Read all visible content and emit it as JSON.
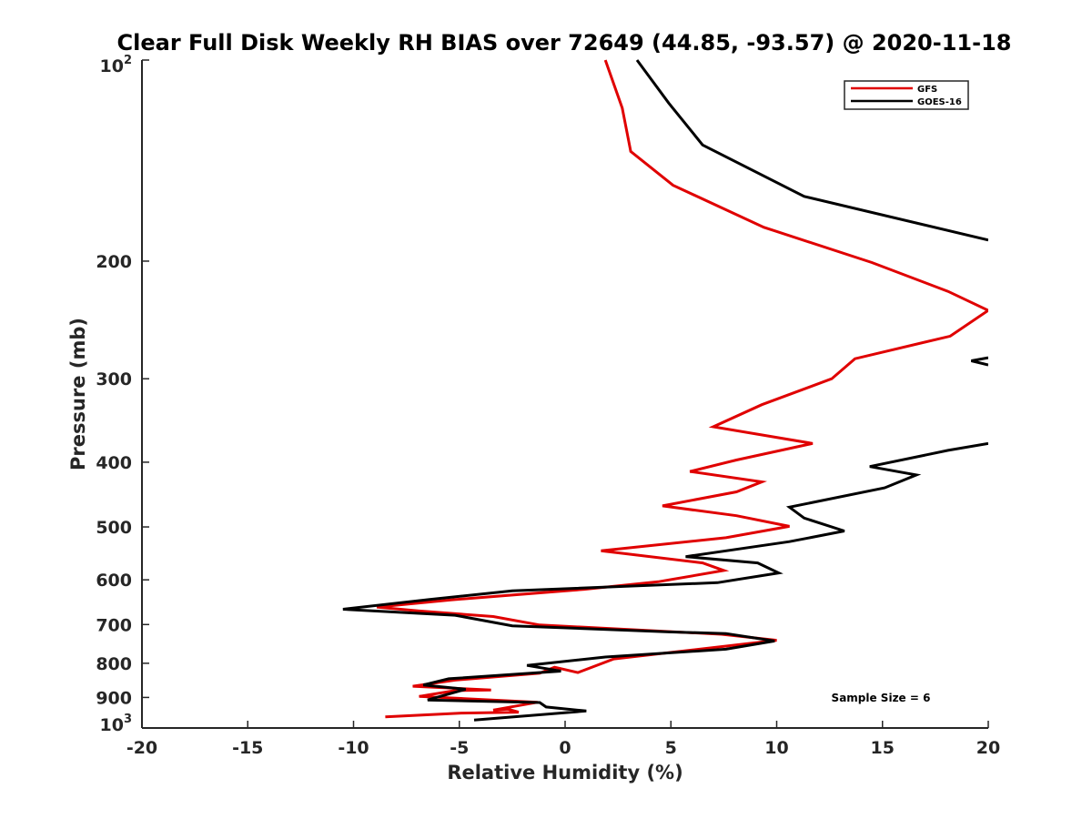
{
  "chart_data": {
    "type": "line",
    "title": "Clear Full Disk Weekly RH BIAS over 72649 (44.85, -93.57) @ 2020-11-18",
    "xlabel": "Relative Humidity (%)",
    "ylabel": "Pressure (mb)",
    "xlim": [
      -20,
      20
    ],
    "ylim": [
      100,
      1000
    ],
    "y_scale": "log",
    "y_reversed": true,
    "x_ticks": [
      "-20",
      "-15",
      "-10",
      "-5",
      "0",
      "5",
      "10",
      "15",
      "20"
    ],
    "y_ticks": [
      {
        "value": 100,
        "base": "10",
        "exp": "2"
      },
      {
        "value": 200,
        "base": "200",
        "exp": ""
      },
      {
        "value": 300,
        "base": "300",
        "exp": ""
      },
      {
        "value": 400,
        "base": "400",
        "exp": ""
      },
      {
        "value": 500,
        "base": "500",
        "exp": ""
      },
      {
        "value": 600,
        "base": "600",
        "exp": ""
      },
      {
        "value": 700,
        "base": "700",
        "exp": ""
      },
      {
        "value": 800,
        "base": "800",
        "exp": ""
      },
      {
        "value": 900,
        "base": "900",
        "exp": ""
      },
      {
        "value": 1000,
        "base": "10",
        "exp": "3"
      }
    ],
    "grid": false,
    "legend_position": "top-right",
    "annotation": "Sample Size = 6",
    "series": [
      {
        "name": "GFS",
        "color": "#e00000",
        "points": [
          [
            1.9,
            100
          ],
          [
            2.7,
            118
          ],
          [
            3.1,
            137
          ],
          [
            5.1,
            154
          ],
          [
            9.4,
            178
          ],
          [
            14.5,
            201
          ],
          [
            18.1,
            222
          ],
          [
            20,
            237
          ],
          [
            18.2,
            259
          ],
          [
            13.7,
            280
          ],
          [
            12.6,
            300
          ],
          [
            9.3,
            328
          ],
          [
            7.0,
            354
          ],
          [
            11.7,
            375
          ],
          [
            8.1,
            397
          ],
          [
            5.9,
            413
          ],
          [
            9.3,
            428
          ],
          [
            8.1,
            443
          ],
          [
            4.6,
            465
          ],
          [
            8.1,
            481
          ],
          [
            10.6,
            499
          ],
          [
            7.6,
            519
          ],
          [
            1.7,
            543
          ],
          [
            6.5,
            566
          ],
          [
            7.5,
            581
          ],
          [
            4.4,
            604
          ],
          [
            0.9,
            620
          ],
          [
            -5.4,
            643
          ],
          [
            -8.9,
            659
          ],
          [
            -6.9,
            668
          ],
          [
            -3.4,
            681
          ],
          [
            -1.2,
            701
          ],
          [
            7.4,
            724
          ],
          [
            10.0,
            739
          ],
          [
            2.3,
            788
          ],
          [
            0.6,
            826
          ],
          [
            -0.5,
            811
          ],
          [
            -1.2,
            828
          ],
          [
            -5.2,
            848
          ],
          [
            -7.2,
            866
          ],
          [
            -3.5,
            877
          ],
          [
            -5.2,
            879
          ],
          [
            -6.9,
            897
          ],
          [
            -1.3,
            915
          ],
          [
            -3.4,
            940
          ],
          [
            -2.7,
            937
          ],
          [
            -2.2,
            947
          ],
          [
            -4.9,
            950
          ],
          [
            -8.5,
            962
          ]
        ]
      },
      {
        "name": "GOES-16",
        "color": "#000000",
        "points": [
          [
            3.4,
            100
          ],
          [
            4.9,
            116
          ],
          [
            6.5,
            134
          ],
          [
            11.3,
            160
          ],
          [
            20,
            186
          ]
        ],
        "extra_segments": [
          [
            [
              20,
              279
            ],
            [
              19.2,
              282
            ],
            [
              20,
              286
            ]
          ],
          [
            [
              20,
              375
            ],
            [
              18.1,
              384
            ],
            [
              14.4,
              406
            ],
            [
              16.6,
              418
            ],
            [
              15.1,
              437
            ],
            [
              10.6,
              467
            ],
            [
              11.3,
              485
            ],
            [
              13.2,
              507
            ],
            [
              10.6,
              526
            ],
            [
              5.7,
              554
            ],
            [
              9.1,
              566
            ],
            [
              10.1,
              586
            ],
            [
              7.2,
              606
            ],
            [
              -2.5,
              623
            ],
            [
              -6.4,
              642
            ],
            [
              -10.5,
              664
            ],
            [
              -5.2,
              678
            ],
            [
              -2.5,
              703
            ],
            [
              4.9,
              718
            ],
            [
              7.6,
              722
            ],
            [
              9.9,
              741
            ],
            [
              7.6,
              762
            ],
            [
              1.9,
              783
            ],
            [
              -1.8,
              806
            ],
            [
              -0.2,
              822
            ],
            [
              -5.5,
              844
            ],
            [
              -6.7,
              862
            ],
            [
              -4.7,
              875
            ],
            [
              -6.5,
              908
            ],
            [
              -1.2,
              916
            ],
            [
              -0.9,
              930
            ],
            [
              1.0,
              943
            ],
            [
              -4.3,
              973
            ]
          ]
        ]
      }
    ]
  }
}
